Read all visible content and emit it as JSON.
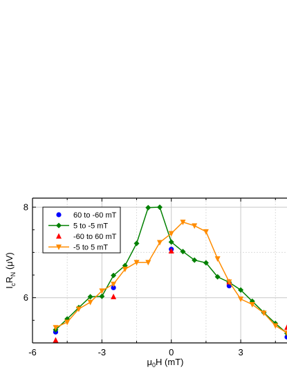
{
  "chart_data": {
    "type": "line",
    "xlabel": {
      "main": "μ",
      "sub": "0",
      "rest": "H (mT)"
    },
    "ylabel": {
      "p1": "I",
      "sub1": "c",
      "p2": "R",
      "sub2": "N",
      "p3": " (μV)"
    },
    "xlim": [
      -6,
      5
    ],
    "ylim": [
      5.0,
      8.2
    ],
    "xticks": [
      -6,
      -3,
      0,
      3
    ],
    "yticks": [
      6,
      8
    ],
    "grid": true,
    "legend_position": "top-left",
    "series": [
      {
        "name": "60 to -60 mT",
        "color": "#0000ff",
        "marker": "circle",
        "line": false,
        "x": [
          -5,
          -2.5,
          0,
          2.5,
          5
        ],
        "y": [
          5.24,
          6.22,
          7.07,
          6.26,
          5.13
        ]
      },
      {
        "name": "5 to -5 mT",
        "color": "#008000",
        "marker": "diamond",
        "line": true,
        "x": [
          -5,
          -4.5,
          -4,
          -3.5,
          -3,
          -2.5,
          -2,
          -1.5,
          -1,
          -0.5,
          0,
          0.5,
          1,
          1.5,
          2,
          2.5,
          3,
          3.5,
          4,
          4.5,
          5
        ],
        "y": [
          5.29,
          5.53,
          5.78,
          6.02,
          6.03,
          6.49,
          6.71,
          7.2,
          7.99,
          8.0,
          7.23,
          7.02,
          6.83,
          6.77,
          6.46,
          6.34,
          6.17,
          5.92,
          5.67,
          5.43,
          5.21
        ]
      },
      {
        "name": "-60 to 60 mT",
        "color": "#ff0000",
        "marker": "triangle-up",
        "line": false,
        "x": [
          -5,
          -2.5,
          0,
          2.5,
          5
        ],
        "y": [
          5.06,
          6.02,
          7.03,
          6.35,
          5.34
        ]
      },
      {
        "name": "-5 to 5 mT",
        "color": "#ff8c00",
        "marker": "triangle-down",
        "line": true,
        "x": [
          -5,
          -4.5,
          -4,
          -3.5,
          -3,
          -2.5,
          -2,
          -1.5,
          -1,
          -0.5,
          0,
          0.5,
          1,
          1.5,
          2,
          2.5,
          3,
          3.5,
          4,
          4.5,
          5
        ],
        "y": [
          5.34,
          5.46,
          5.75,
          5.9,
          6.15,
          6.3,
          6.63,
          6.78,
          6.78,
          7.22,
          7.42,
          7.67,
          7.59,
          7.46,
          6.86,
          6.35,
          5.97,
          5.85,
          5.66,
          5.38,
          5.22
        ]
      }
    ]
  }
}
